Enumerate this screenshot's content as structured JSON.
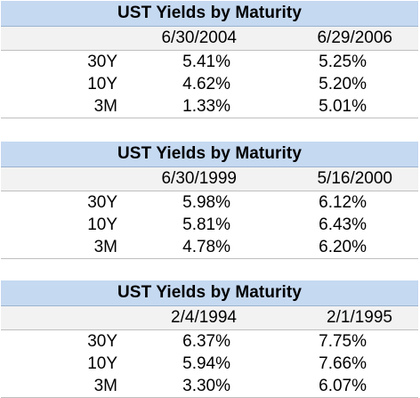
{
  "tables": [
    {
      "title": "UST Yields by Maturity",
      "dates": [
        "6/30/2004",
        "6/29/2006"
      ],
      "rows": [
        {
          "label": "30Y",
          "values": [
            "5.41%",
            "5.25%"
          ]
        },
        {
          "label": "10Y",
          "values": [
            "4.62%",
            "5.20%"
          ]
        },
        {
          "label": "3M",
          "values": [
            "1.33%",
            "5.01%"
          ]
        }
      ]
    },
    {
      "title": "UST Yields by Maturity",
      "dates": [
        "6/30/1999",
        "5/16/2000"
      ],
      "rows": [
        {
          "label": "30Y",
          "values": [
            "5.98%",
            "6.12%"
          ]
        },
        {
          "label": "10Y",
          "values": [
            "5.81%",
            "6.43%"
          ]
        },
        {
          "label": "3M",
          "values": [
            "4.78%",
            "6.20%"
          ]
        }
      ]
    },
    {
      "title": "UST Yields by Maturity",
      "dates": [
        "2/4/1994",
        "2/1/1995"
      ],
      "rows": [
        {
          "label": "30Y",
          "values": [
            "6.37%",
            "7.75%"
          ]
        },
        {
          "label": "10Y",
          "values": [
            "5.94%",
            "7.66%"
          ]
        },
        {
          "label": "3M",
          "values": [
            "3.30%",
            "6.07%"
          ]
        }
      ]
    }
  ],
  "colors": {
    "title_background": "#c5d9f1",
    "header_background": "#f2f2f2",
    "rule": "#bfbfbf"
  }
}
